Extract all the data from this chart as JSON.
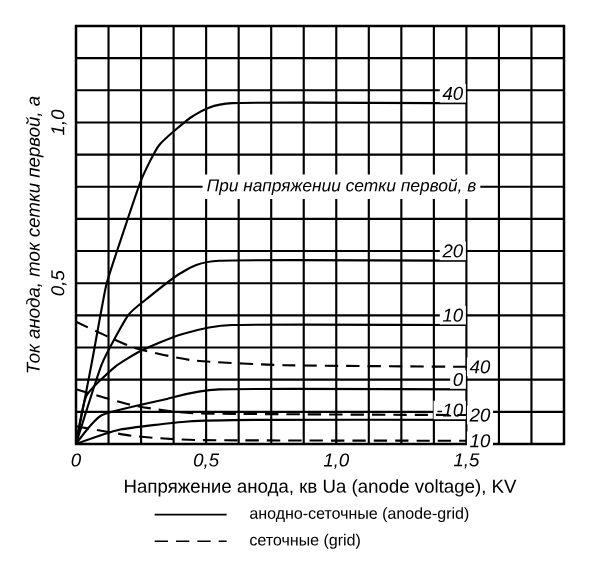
{
  "chart_data": {
    "type": "line",
    "xlabel": "Напряжение анода, кв  Ua (anode voltage), KV",
    "ylabel": "Ток анода, ток сетки первой, а",
    "xlim": [
      0,
      1.875
    ],
    "ylim": [
      0,
      1.3
    ],
    "xticks": [
      0,
      {
        "value": 0.125,
        "label": null
      },
      {
        "value": 0.25,
        "label": null
      },
      {
        "value": 0.375,
        "label": null
      },
      {
        "value": 0.5,
        "label": "0,5"
      },
      {
        "value": 0.625,
        "label": null
      },
      {
        "value": 0.75,
        "label": null
      },
      {
        "value": 0.875,
        "label": null
      },
      {
        "value": 1.0,
        "label": "1,0"
      },
      {
        "value": 1.125,
        "label": null
      },
      {
        "value": 1.25,
        "label": null
      },
      {
        "value": 1.375,
        "label": null
      },
      {
        "value": 1.5,
        "label": "1,5"
      },
      {
        "value": 1.625,
        "label": null
      },
      {
        "value": 1.75,
        "label": null
      },
      {
        "value": 1.875,
        "label": null
      }
    ],
    "yticks": [
      {
        "value": 0,
        "label": null
      },
      {
        "value": 0.1,
        "label": null
      },
      {
        "value": 0.2,
        "label": null
      },
      {
        "value": 0.3,
        "label": null
      },
      {
        "value": 0.4,
        "label": null
      },
      {
        "value": 0.5,
        "label": "0,5"
      },
      {
        "value": 0.6,
        "label": null
      },
      {
        "value": 0.7,
        "label": null
      },
      {
        "value": 0.8,
        "label": null
      },
      {
        "value": 0.9,
        "label": null
      },
      {
        "value": 1.0,
        "label": "1,0"
      },
      {
        "value": 1.1,
        "label": null
      },
      {
        "value": 1.2,
        "label": null
      },
      {
        "value": 1.3,
        "label": null
      }
    ],
    "grid": true,
    "annotations": [
      "При напряжении сетки первой, в",
      "анодно-сеточные  (anode-grid)",
      "сеточные  (grid)"
    ],
    "series": [
      {
        "name": "40",
        "color": "#000000",
        "line_style": "solid",
        "x": [
          0,
          0.06,
          0.115,
          0.17,
          0.25,
          0.32,
          0.45,
          0.6,
          1.5
        ],
        "values": [
          0,
          0.25,
          0.49,
          0.63,
          0.82,
          0.93,
          1.02,
          1.06,
          1.06
        ]
      },
      {
        "name": "20",
        "color": "#000000",
        "line_style": "solid",
        "x": [
          0,
          0.1,
          0.2,
          0.27,
          0.4,
          0.55,
          1.5
        ],
        "values": [
          0,
          0.25,
          0.4,
          0.45,
          0.53,
          0.57,
          0.57
        ]
      },
      {
        "name": "10",
        "color": "#000000",
        "line_style": "solid",
        "x": [
          0,
          0.04,
          0.15,
          0.25,
          0.4,
          0.6,
          1.5
        ],
        "values": [
          0,
          0.15,
          0.24,
          0.29,
          0.34,
          0.37,
          0.37
        ]
      },
      {
        "name": "0",
        "color": "#000000",
        "line_style": "solid",
        "x": [
          0,
          0.1,
          0.35,
          0.55,
          1.5
        ],
        "values": [
          0,
          0.09,
          0.14,
          0.17,
          0.17
        ]
      },
      {
        "name": "-10",
        "color": "#000000",
        "line_style": "solid",
        "x": [
          0,
          0.17,
          0.43,
          0.73,
          1.5
        ],
        "values": [
          0,
          0.045,
          0.07,
          0.075,
          0.075
        ]
      },
      {
        "name": "40",
        "color": "#000000",
        "line_style": "dashed",
        "x": [
          0,
          0.22,
          0.45,
          0.8,
          1.5
        ],
        "values": [
          0.38,
          0.3,
          0.26,
          0.245,
          0.24
        ]
      },
      {
        "name": "20",
        "color": "#000000",
        "line_style": "dashed",
        "x": [
          0,
          0.22,
          0.48,
          1.5
        ],
        "values": [
          0.17,
          0.12,
          0.095,
          0.09
        ]
      },
      {
        "name": "10",
        "color": "#000000",
        "line_style": "dashed",
        "x": [
          0,
          0.22,
          0.48,
          1.5
        ],
        "values": [
          0.055,
          0.025,
          0.012,
          0.01
        ]
      }
    ]
  }
}
